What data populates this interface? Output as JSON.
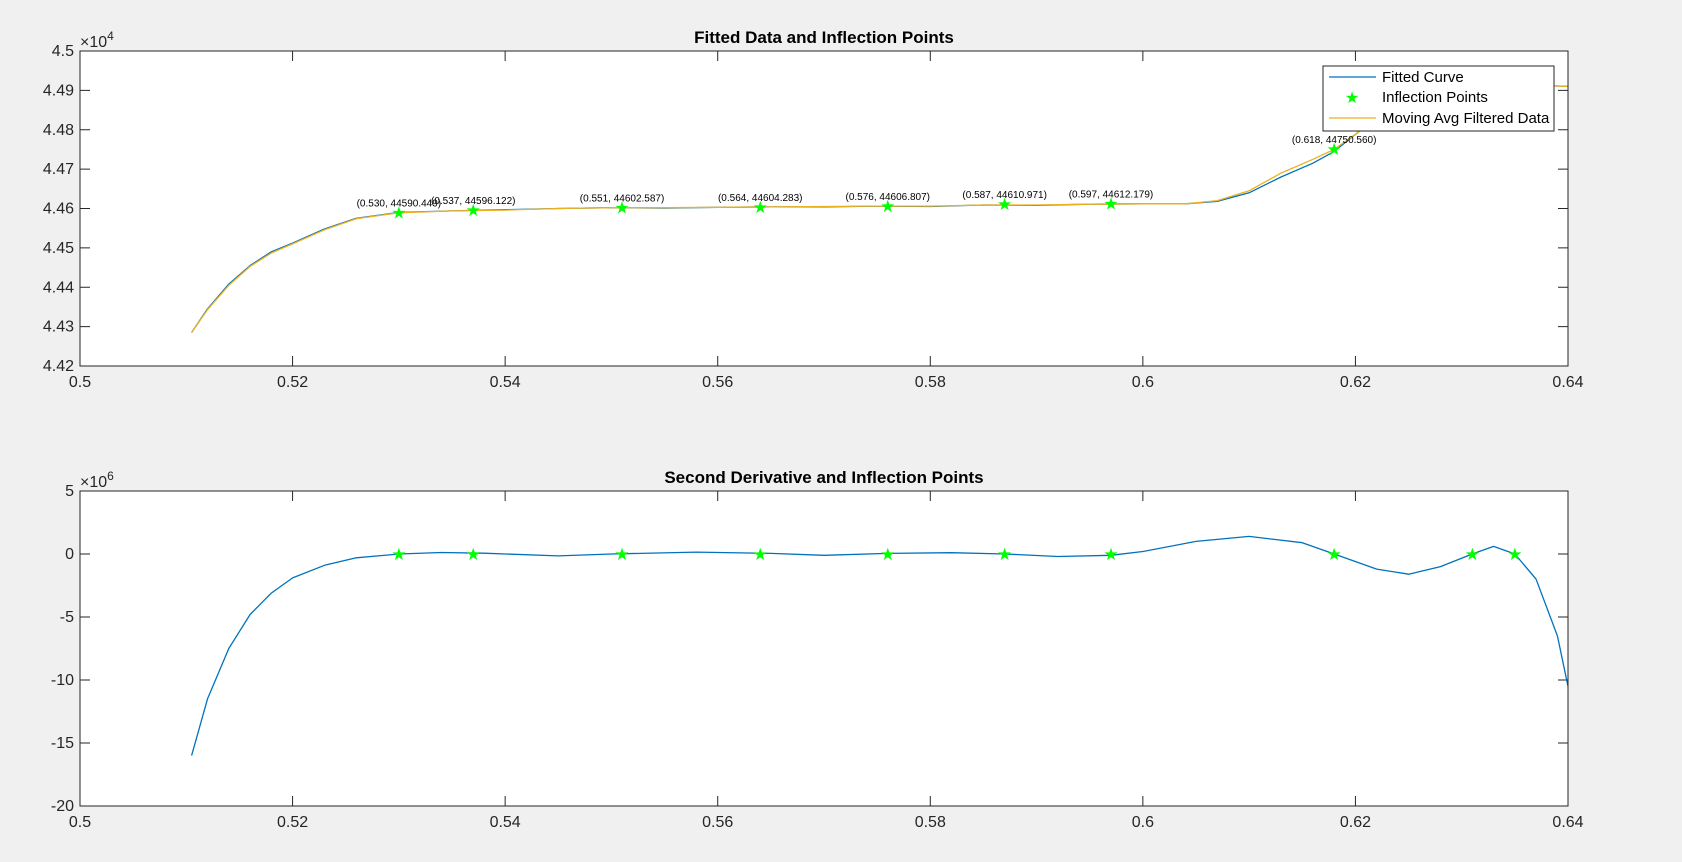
{
  "chart_data": [
    {
      "type": "line",
      "title": "Fitted Data and Inflection Points",
      "xlabel": "",
      "ylabel": "",
      "xlim": [
        0.5,
        0.64
      ],
      "ylim": [
        44200,
        45000
      ],
      "multiplier_label": "×10",
      "multiplier_exp": "4",
      "xticks": [
        0.5,
        0.52,
        0.54,
        0.56,
        0.58,
        0.6,
        0.62,
        0.64
      ],
      "xtick_labels": [
        "0.5",
        "0.52",
        "0.54",
        "0.56",
        "0.58",
        "0.6",
        "0.62",
        "0.64"
      ],
      "yticks": [
        44200,
        44300,
        44400,
        44500,
        44600,
        44700,
        44800,
        44900,
        45000
      ],
      "ytick_labels": [
        "4.42",
        "4.43",
        "4.44",
        "4.45",
        "4.46",
        "4.47",
        "4.48",
        "4.49",
        "4.5"
      ],
      "legend": [
        "Fitted Curve",
        "Inflection Points",
        "Moving Avg Filtered Data"
      ],
      "legend_position": "top-right",
      "colors": {
        "fitted": "#0072BD",
        "moving_avg": "#EDB120",
        "points": "#00FF00"
      },
      "series": [
        {
          "name": "Fitted Curve",
          "x": [
            0.5105,
            0.512,
            0.514,
            0.516,
            0.518,
            0.52,
            0.523,
            0.526,
            0.53,
            0.535,
            0.54,
            0.545,
            0.55,
            0.555,
            0.56,
            0.565,
            0.57,
            0.575,
            0.58,
            0.585,
            0.59,
            0.595,
            0.6,
            0.604,
            0.607,
            0.61,
            0.613,
            0.616,
            0.618,
            0.621,
            0.624,
            0.627,
            0.63,
            0.635,
            0.64
          ],
          "y": [
            44285,
            44345,
            44408,
            44455,
            44490,
            44512,
            44548,
            44575,
            44590,
            44594,
            44597,
            44600,
            44602,
            44601,
            44603,
            44604,
            44604,
            44606,
            44605,
            44609,
            44608,
            44611,
            44612,
            44612,
            44618,
            44640,
            44680,
            44715,
            44745,
            44810,
            44870,
            44910,
            44920,
            44915,
            44910
          ]
        },
        {
          "name": "Moving Avg Filtered Data",
          "x": [
            0.5105,
            0.512,
            0.514,
            0.516,
            0.518,
            0.52,
            0.523,
            0.526,
            0.53,
            0.535,
            0.54,
            0.545,
            0.55,
            0.555,
            0.56,
            0.565,
            0.57,
            0.575,
            0.58,
            0.585,
            0.59,
            0.595,
            0.6,
            0.604,
            0.607,
            0.61,
            0.613,
            0.616,
            0.618,
            0.621,
            0.624,
            0.627,
            0.63,
            0.635,
            0.64
          ],
          "y": [
            44285,
            44343,
            44405,
            44453,
            44487,
            44510,
            44546,
            44574,
            44589,
            44594,
            44596,
            44600,
            44602,
            44602,
            44603,
            44604,
            44605,
            44606,
            44606,
            44609,
            44609,
            44611,
            44612,
            44612,
            44620,
            44645,
            44690,
            44725,
            44750,
            44808,
            44865,
            44905,
            44918,
            44915,
            44910
          ]
        }
      ],
      "inflection_points": {
        "name": "Inflection Points",
        "x": [
          0.53,
          0.537,
          0.551,
          0.564,
          0.576,
          0.587,
          0.597,
          0.618
        ],
        "y": [
          44590.449,
          44596.122,
          44602.587,
          44604.283,
          44606.807,
          44610.971,
          44612.179,
          44750.56
        ],
        "labels": [
          "(0.530, 44590.449)",
          "(0.537, 44596.122)",
          "(0.551, 44602.587)",
          "(0.564, 44604.283)",
          "(0.576, 44606.807)",
          "(0.587, 44610.971)",
          "(0.597, 44612.179)",
          "(0.618, 44750.560)"
        ]
      }
    },
    {
      "type": "line",
      "title": "Second Derivative and Inflection Points",
      "xlabel": "",
      "ylabel": "",
      "xlim": [
        0.5,
        0.64
      ],
      "ylim": [
        -20000000,
        5000000
      ],
      "multiplier_label": "×10",
      "multiplier_exp": "6",
      "xticks": [
        0.5,
        0.52,
        0.54,
        0.56,
        0.58,
        0.6,
        0.62,
        0.64
      ],
      "xtick_labels": [
        "0.5",
        "0.52",
        "0.54",
        "0.56",
        "0.58",
        "0.6",
        "0.62",
        "0.64"
      ],
      "yticks": [
        -20000000,
        -15000000,
        -10000000,
        -5000000,
        0,
        5000000
      ],
      "ytick_labels": [
        "-20",
        "-15",
        "-10",
        "-5",
        "0",
        "5"
      ],
      "colors": {
        "line": "#0072BD",
        "points": "#00FF00"
      },
      "series": [
        {
          "name": "",
          "x": [
            0.5105,
            0.512,
            0.514,
            0.516,
            0.518,
            0.52,
            0.523,
            0.526,
            0.53,
            0.534,
            0.538,
            0.545,
            0.55,
            0.558,
            0.565,
            0.57,
            0.576,
            0.582,
            0.587,
            0.592,
            0.597,
            0.6,
            0.605,
            0.61,
            0.615,
            0.618,
            0.622,
            0.625,
            0.628,
            0.631,
            0.633,
            0.635,
            0.637,
            0.639,
            0.64
          ],
          "y": [
            -16000000,
            -11500000,
            -7500000,
            -4800000,
            -3100000,
            -1900000,
            -900000,
            -300000,
            0,
            120000,
            60000,
            -150000,
            0,
            150000,
            50000,
            -100000,
            50000,
            100000,
            0,
            -200000,
            -100000,
            200000,
            1000000,
            1400000,
            900000,
            0,
            -1200000,
            -1600000,
            -1000000,
            0,
            600000,
            0,
            -2000000,
            -6500000,
            -10500000
          ]
        }
      ],
      "inflection_points": {
        "name": "",
        "x": [
          0.53,
          0.537,
          0.551,
          0.564,
          0.576,
          0.587,
          0.597,
          0.618,
          0.631,
          0.635
        ],
        "y": [
          0,
          0,
          0,
          0,
          0,
          0,
          0,
          0,
          0,
          0
        ]
      }
    }
  ]
}
